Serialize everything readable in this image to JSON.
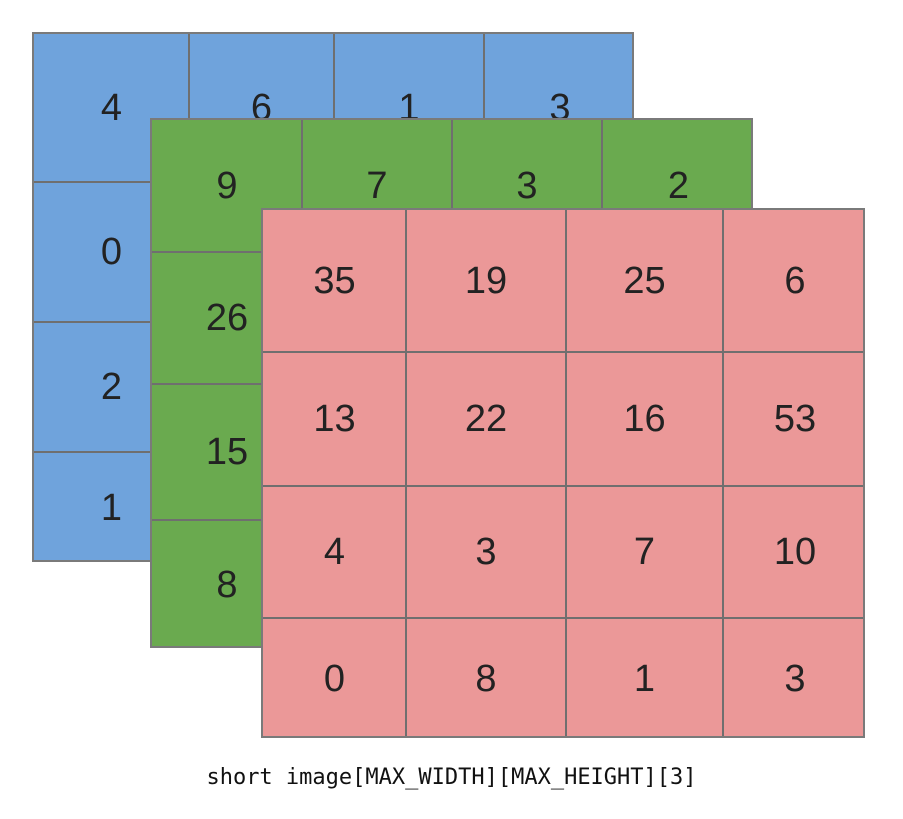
{
  "colors": {
    "blue": "#6fa3dc",
    "green": "#6aaa4f",
    "red": "#eb9898",
    "grid": "#6f6f6f"
  },
  "layers": [
    {
      "name": "blue",
      "values": [
        [
          "4",
          "6",
          "1",
          "3"
        ],
        [
          "0",
          "",
          "",
          ""
        ],
        [
          "2",
          "",
          "",
          ""
        ],
        [
          "1",
          "",
          "",
          ""
        ]
      ]
    },
    {
      "name": "green",
      "values": [
        [
          "9",
          "7",
          "3",
          "2"
        ],
        [
          "26",
          "",
          "",
          ""
        ],
        [
          "15",
          "",
          "",
          ""
        ],
        [
          "8",
          "",
          "",
          ""
        ]
      ]
    },
    {
      "name": "red",
      "values": [
        [
          "35",
          "19",
          "25",
          "6"
        ],
        [
          "13",
          "22",
          "16",
          "53"
        ],
        [
          "4",
          "3",
          "7",
          "10"
        ],
        [
          "0",
          "8",
          "1",
          "3"
        ]
      ]
    }
  ],
  "caption": "short image[MAX_WIDTH][MAX_HEIGHT][3]"
}
